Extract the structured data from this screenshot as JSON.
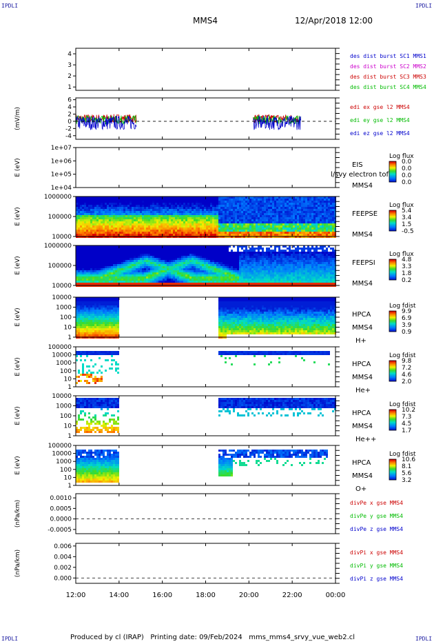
{
  "header": {
    "corner_tl": "IPDLI",
    "corner_tr": "IPDLI",
    "corner_bl": "IPDLI",
    "corner_br": "IPDLI",
    "title": "MMS4",
    "datetime": "12/Apr/2018 12:00"
  },
  "footer": {
    "text": "Produced by cl (IRAP)   Printing date: 09/Feb/2024   mms_mms4_srvy_vue_web2.cl"
  },
  "colors": {
    "blue": "#0000cc",
    "magenta": "#cc00cc",
    "red": "#cc0000",
    "green": "#00bb00"
  },
  "chart_data": [
    {
      "type": "line",
      "panel": "des-dist",
      "ylabel": "",
      "yticks": [
        "1",
        "2",
        "3",
        "4"
      ],
      "ylim": [
        0.7,
        4.5
      ],
      "legend": [
        {
          "text": "des dist burst SC1 MMS1",
          "color": "#0000cc"
        },
        {
          "text": "des dist burst SC2 MMS2",
          "color": "#cc00cc"
        },
        {
          "text": "des dist burst SC3 MMS3",
          "color": "#cc0000"
        },
        {
          "text": "des dist burst SC4 MMS4",
          "color": "#00bb00"
        }
      ]
    },
    {
      "type": "line",
      "panel": "edi",
      "ylabel": "(mV/m)",
      "yticks": [
        "-4",
        "-2",
        "0",
        "2",
        "4",
        "6"
      ],
      "ylim": [
        -5,
        6.5
      ],
      "zero_line": true,
      "legend": [
        {
          "text": "edi ex gse l2 MMS4",
          "color": "#cc0000"
        },
        {
          "text": "edi ey gse l2 MMS4",
          "color": "#00bb00"
        },
        {
          "text": "edi ez gse l2 MMS4",
          "color": "#0000cc"
        }
      ],
      "segments_hours": [
        [
          12.0,
          14.8
        ],
        [
          20.2,
          22.4
        ]
      ]
    },
    {
      "type": "heatmap",
      "panel": "eis",
      "ylabel": "E (eV)",
      "yticks": [
        "1e+04",
        "1e+05",
        "1e+06",
        "1e+07"
      ],
      "side_labels": [
        "EIS",
        "MMS4"
      ],
      "overlay_label": "l/svy electron tof",
      "colorbar": {
        "title": "Log flux",
        "ticks": [
          "0.0",
          "0.0",
          "0.0",
          "0.0"
        ]
      }
    },
    {
      "type": "heatmap",
      "panel": "feeps-e",
      "ylabel": "E (eV)",
      "yticks": [
        "10000",
        "100000",
        "1000000"
      ],
      "side_labels": [
        "FEEPSE",
        "MMS4"
      ],
      "colorbar": {
        "title": "Log flux",
        "ticks": [
          "5.4",
          "3.4",
          "1.5",
          "-0.5"
        ]
      }
    },
    {
      "type": "heatmap",
      "panel": "feeps-i",
      "ylabel": "E (eV)",
      "yticks": [
        "10000",
        "100000",
        "1000000"
      ],
      "side_labels": [
        "FEEPSI",
        "MMS4"
      ],
      "colorbar": {
        "title": "Log flux",
        "ticks": [
          "4.8",
          "3.3",
          "1.8",
          "0.2"
        ]
      }
    },
    {
      "type": "heatmap",
      "panel": "hpca-h",
      "ylabel": "E (eV)",
      "yticks": [
        "1",
        "10",
        "100",
        "1000",
        "10000"
      ],
      "side_labels": [
        "HPCA",
        "MMS4",
        "H+"
      ],
      "colorbar": {
        "title": "Log fdist",
        "ticks": [
          "9.9",
          "6.9",
          "3.9",
          "0.9"
        ]
      }
    },
    {
      "type": "heatmap",
      "panel": "hpca-he",
      "ylabel": "E (eV)",
      "yticks": [
        "1",
        "10",
        "100",
        "1000",
        "10000",
        "100000"
      ],
      "side_labels": [
        "HPCA",
        "MMS4",
        "He+"
      ],
      "colorbar": {
        "title": "Log fdist",
        "ticks": [
          "9.8",
          "7.2",
          "4.6",
          "2.0"
        ]
      }
    },
    {
      "type": "heatmap",
      "panel": "hpca-he2",
      "ylabel": "E (eV)",
      "yticks": [
        "1",
        "10",
        "100",
        "1000",
        "10000"
      ],
      "side_labels": [
        "HPCA",
        "MMS4",
        "He++"
      ],
      "colorbar": {
        "title": "Log fdist",
        "ticks": [
          "10.2",
          "7.3",
          "4.5",
          "1.7"
        ]
      }
    },
    {
      "type": "heatmap",
      "panel": "hpca-o",
      "ylabel": "E (eV)",
      "yticks": [
        "1",
        "10",
        "100",
        "1000",
        "10000",
        "100000"
      ],
      "side_labels": [
        "HPCA",
        "MMS4",
        "O+"
      ],
      "colorbar": {
        "title": "Log fdist",
        "ticks": [
          "10.6",
          "8.1",
          "5.6",
          "3.2"
        ]
      }
    },
    {
      "type": "line",
      "panel": "divpe",
      "ylabel": "(nPa/km)",
      "yticks": [
        "-0.0005",
        "0.0000",
        "0.0005",
        "0.0010"
      ],
      "ylim": [
        -0.0007,
        0.0012
      ],
      "zero_line": true,
      "legend": [
        {
          "text": "divPe x gse MMS4",
          "color": "#cc0000"
        },
        {
          "text": "divPe y gse MMS4",
          "color": "#00bb00"
        },
        {
          "text": "divPe z gse MMS4",
          "color": "#0000cc"
        }
      ]
    },
    {
      "type": "line",
      "panel": "divpi",
      "ylabel": "(nPa/km)",
      "yticks": [
        "0.000",
        "0.002",
        "0.004",
        "0.006"
      ],
      "ylim": [
        -0.001,
        0.0065
      ],
      "zero_line": true,
      "legend": [
        {
          "text": "divPi x gse MMS4",
          "color": "#cc0000"
        },
        {
          "text": "divPi y gse MMS4",
          "color": "#00bb00"
        },
        {
          "text": "divPi z gse MMS4",
          "color": "#0000cc"
        }
      ]
    }
  ],
  "x_axis": {
    "ticks": [
      "12:00",
      "14:00",
      "16:00",
      "18:00",
      "20:00",
      "22:00",
      "00:00"
    ],
    "range_hours": [
      12,
      24
    ]
  }
}
